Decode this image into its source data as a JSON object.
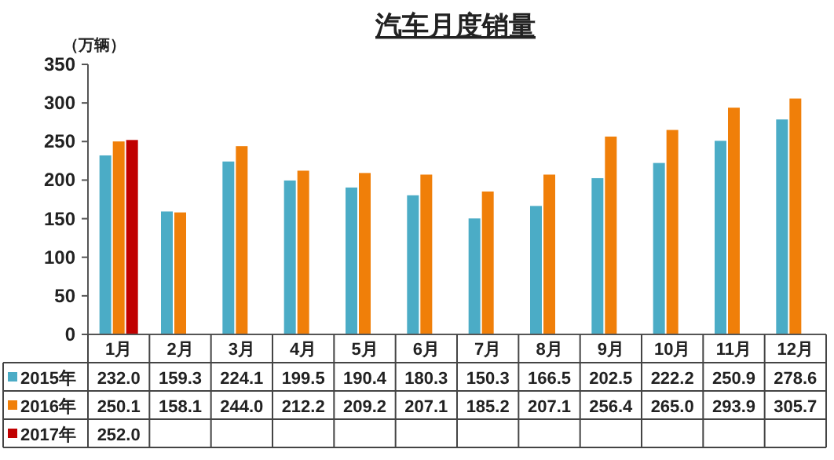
{
  "chart_data": {
    "type": "bar",
    "title": "汽车月度销量",
    "ylabel": "（万辆）",
    "categories": [
      "1月",
      "2月",
      "3月",
      "4月",
      "5月",
      "6月",
      "7月",
      "8月",
      "9月",
      "10月",
      "11月",
      "12月"
    ],
    "series": [
      {
        "name": "2015年",
        "color": "#4bacc6",
        "values": [
          232.0,
          159.3,
          224.1,
          199.5,
          190.4,
          180.3,
          150.3,
          166.5,
          202.5,
          222.2,
          250.9,
          278.6
        ],
        "value_labels": [
          "232.0",
          "159.3",
          "224.1",
          "199.5",
          "190.4",
          "180.3",
          "150.3",
          "166.5",
          "202.5",
          "222.2",
          "250.9",
          "278.6"
        ]
      },
      {
        "name": "2016年",
        "color": "#f07f09",
        "values": [
          250.1,
          158.1,
          244.0,
          212.2,
          209.2,
          207.1,
          185.2,
          207.1,
          256.4,
          265.0,
          293.9,
          305.7
        ],
        "value_labels": [
          "250.1",
          "158.1",
          "244.0",
          "212.2",
          "209.2",
          "207.1",
          "185.2",
          "207.1",
          "256.4",
          "265.0",
          "293.9",
          "305.7"
        ]
      },
      {
        "name": "2017年",
        "color": "#c00000",
        "values": [
          252.0,
          null,
          null,
          null,
          null,
          null,
          null,
          null,
          null,
          null,
          null,
          null
        ],
        "value_labels": [
          "252.0",
          null,
          null,
          null,
          null,
          null,
          null,
          null,
          null,
          null,
          null,
          null
        ]
      }
    ],
    "ylim": [
      0,
      350
    ],
    "yticks": [
      0,
      50,
      100,
      150,
      200,
      250,
      300,
      350
    ],
    "legend": "bottom left",
    "grid": false
  }
}
